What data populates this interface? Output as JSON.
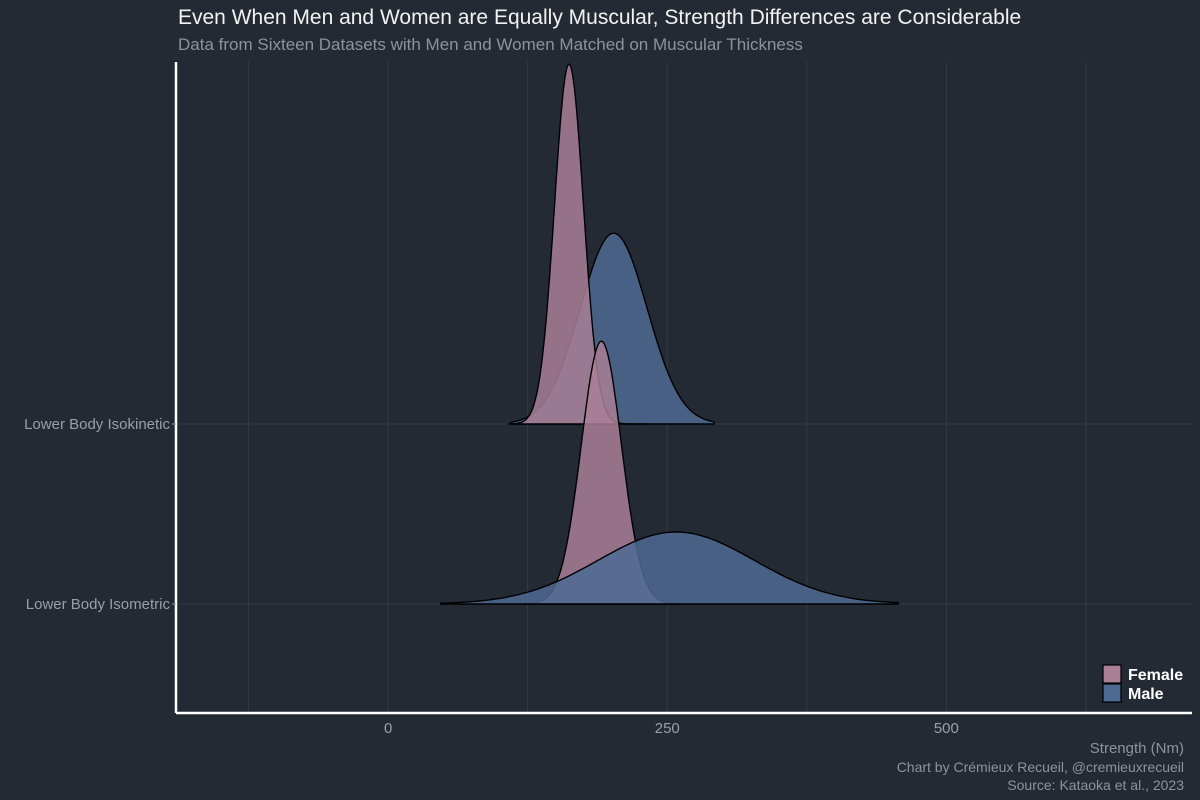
{
  "colors": {
    "background": "#242a33",
    "female": "#a97f96",
    "male": "#4d6a92",
    "gridline": "#353b45",
    "axis": "#ffffff"
  },
  "chart_data": {
    "type": "area",
    "title": "Even When Men and Women are Equally Muscular, Strength Differences are Considerable",
    "subtitle": "Data from Sixteen Datasets with Men and Women Matched on Muscular Thickness",
    "xlabel": "Strength (Nm)",
    "caption_line1": "Chart by Crémieux Recueil, @cremieuxrecueil",
    "caption_line2": "Source: Kataoka et al., 2023",
    "xlim": [
      -190,
      720
    ],
    "x_ticks": [
      0,
      250,
      500
    ],
    "categories": [
      "Lower Body Isokinetic",
      "Lower Body Isometric"
    ],
    "legend": {
      "position": "bottom-right",
      "entries": [
        "Female",
        "Male"
      ]
    },
    "series": [
      {
        "name": "Female",
        "ridges": [
          {
            "category": "Lower Body Isokinetic",
            "mean": 162,
            "sd": 13,
            "min": 108,
            "max": 232,
            "peak_height": 1.0
          },
          {
            "category": "Lower Body Isometric",
            "mean": 191,
            "sd": 18,
            "min": 122,
            "max": 260,
            "peak_height": 0.73
          }
        ]
      },
      {
        "name": "Male",
        "ridges": [
          {
            "category": "Lower Body Isokinetic",
            "mean": 202,
            "sd": 30,
            "min": 110,
            "max": 292,
            "peak_height": 0.53
          },
          {
            "category": "Lower Body Isometric",
            "mean": 258,
            "sd": 70,
            "min": 47,
            "max": 457,
            "peak_height": 0.2
          }
        ]
      }
    ]
  }
}
